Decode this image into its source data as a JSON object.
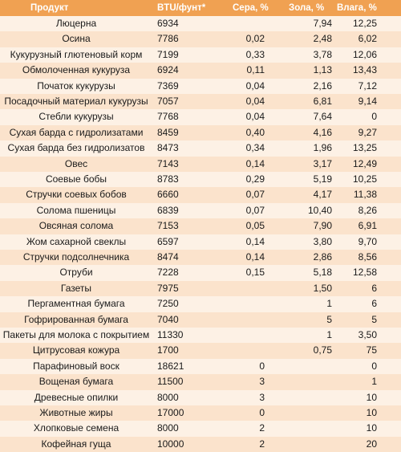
{
  "headers": {
    "product": "Продукт",
    "btu": "BTU/фунт*",
    "sulfur": "Сера, %",
    "ash": "Зола, %",
    "moisture": "Влага, %"
  },
  "rows": [
    {
      "product": "Люцерна",
      "btu": "6934",
      "sulfur": "",
      "ash": "7,94",
      "moisture": "12,25"
    },
    {
      "product": "Осина",
      "btu": "7786",
      "sulfur": "0,02",
      "ash": "2,48",
      "moisture": "6,02"
    },
    {
      "product": "Кукурузный глютеновый корм",
      "btu": "7199",
      "sulfur": "0,33",
      "ash": "3,78",
      "moisture": "12,06"
    },
    {
      "product": "Обмолоченная кукуруза",
      "btu": "6924",
      "sulfur": "0,11",
      "ash": "1,13",
      "moisture": "13,43"
    },
    {
      "product": "Початок кукурузы",
      "btu": "7369",
      "sulfur": "0,04",
      "ash": "2,16",
      "moisture": "7,12"
    },
    {
      "product": "Посадочный материал кукурузы",
      "btu": "7057",
      "sulfur": "0,04",
      "ash": "6,81",
      "moisture": "9,14"
    },
    {
      "product": "Стебли кукурузы",
      "btu": "7768",
      "sulfur": "0,04",
      "ash": "7,64",
      "moisture": "0"
    },
    {
      "product": "Сухая барда с гидролизатами",
      "btu": "8459",
      "sulfur": "0,40",
      "ash": "4,16",
      "moisture": "9,27"
    },
    {
      "product": "Сухая барда без гидролизатов",
      "btu": "8473",
      "sulfur": "0,34",
      "ash": "1,96",
      "moisture": "13,25"
    },
    {
      "product": "Овес",
      "btu": "7143",
      "sulfur": "0,14",
      "ash": "3,17",
      "moisture": "12,49"
    },
    {
      "product": "Соевые бобы",
      "btu": "8783",
      "sulfur": "0,29",
      "ash": "5,19",
      "moisture": "10,25"
    },
    {
      "product": "Стручки соевых бобов",
      "btu": "6660",
      "sulfur": "0,07",
      "ash": "4,17",
      "moisture": "11,38"
    },
    {
      "product": "Солома пшеницы",
      "btu": "6839",
      "sulfur": "0,07",
      "ash": "10,40",
      "moisture": "8,26"
    },
    {
      "product": "Овсяная солома",
      "btu": "7153",
      "sulfur": "0,05",
      "ash": "7,90",
      "moisture": "6,91"
    },
    {
      "product": "Жом сахарной свеклы",
      "btu": "6597",
      "sulfur": "0,14",
      "ash": "3,80",
      "moisture": "9,70"
    },
    {
      "product": "Стручки подсолнечника",
      "btu": "8474",
      "sulfur": "0,14",
      "ash": "2,86",
      "moisture": "8,56"
    },
    {
      "product": "Отруби",
      "btu": "7228",
      "sulfur": "0,15",
      "ash": "5,18",
      "moisture": "12,58"
    },
    {
      "product": "Газеты",
      "btu": "7975",
      "sulfur": "",
      "ash": "1,50",
      "moisture": "6"
    },
    {
      "product": "Пергаментная бумага",
      "btu": "7250",
      "sulfur": "",
      "ash": "1",
      "moisture": "6"
    },
    {
      "product": "Гофрированная бумага",
      "btu": "7040",
      "sulfur": "",
      "ash": "5",
      "moisture": "5"
    },
    {
      "product": "Пакеты для молока с покрытием",
      "btu": "11330",
      "sulfur": "",
      "ash": "1",
      "moisture": "3,50"
    },
    {
      "product": "Цитрусовая кожура",
      "btu": "1700",
      "sulfur": "",
      "ash": "0,75",
      "moisture": "75"
    },
    {
      "product": "Парафиновый воск",
      "btu": "18621",
      "sulfur": "0",
      "ash": "",
      "moisture": "0"
    },
    {
      "product": "Вощеная бумага",
      "btu": "11500",
      "sulfur": "3",
      "ash": "",
      "moisture": "1"
    },
    {
      "product": "Древесные опилки",
      "btu": "8000",
      "sulfur": "3",
      "ash": "",
      "moisture": "10"
    },
    {
      "product": "Животные жиры",
      "btu": "17000",
      "sulfur": "0",
      "ash": "",
      "moisture": "10"
    },
    {
      "product": "Хлопковые семена",
      "btu": "8000",
      "sulfur": "2",
      "ash": "",
      "moisture": "10"
    },
    {
      "product": "Кофейная гуща",
      "btu": "10000",
      "sulfur": "2",
      "ash": "",
      "moisture": "20"
    }
  ]
}
